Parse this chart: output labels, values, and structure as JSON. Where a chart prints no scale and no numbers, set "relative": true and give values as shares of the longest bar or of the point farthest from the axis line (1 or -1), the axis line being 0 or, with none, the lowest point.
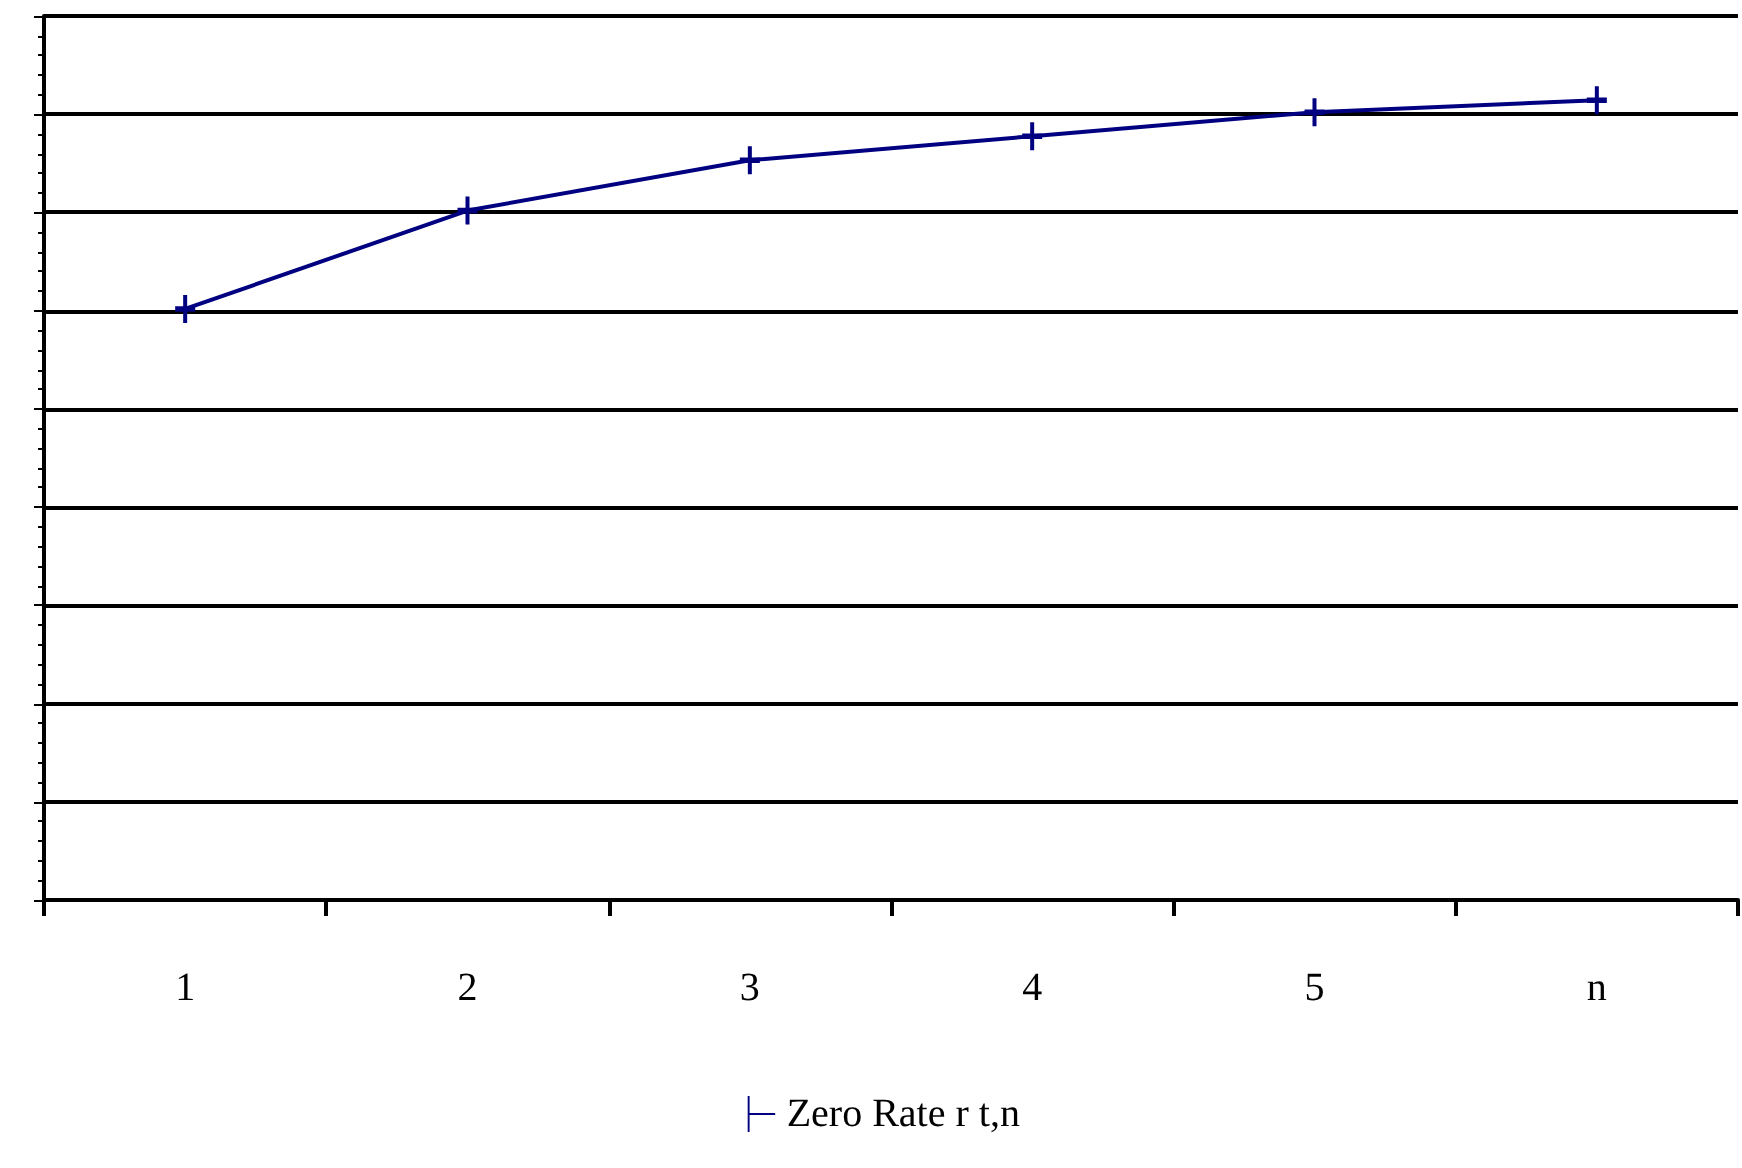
{
  "chart_data": {
    "type": "line",
    "relative": true,
    "categories": [
      "1",
      "2",
      "3",
      "4",
      "5",
      "n"
    ],
    "series": [
      {
        "name": "Zero Rate r t,n",
        "color": "#000080",
        "values": [
          0.739,
          0.862,
          0.925,
          0.955,
          0.985,
          1
        ]
      }
    ],
    "grid": "y",
    "legend": "bottom",
    "marker": "cross",
    "line_style": "solid"
  }
}
